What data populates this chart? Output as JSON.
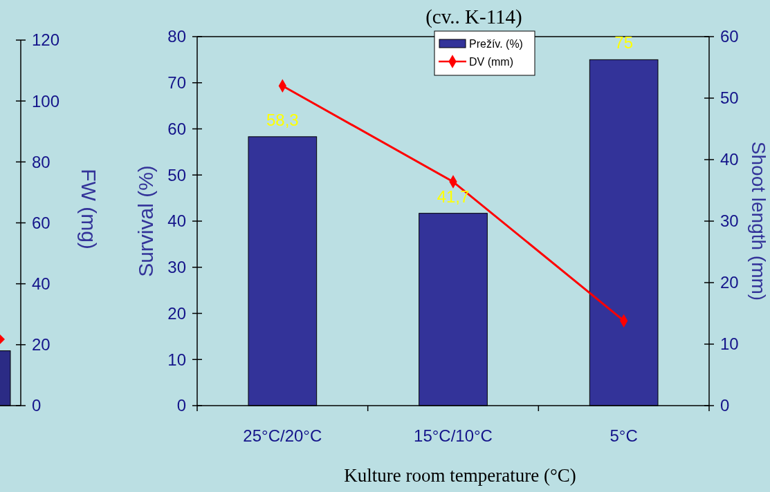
{
  "chart_data": [
    {
      "type": "bar",
      "ylabel": "FW (mg)",
      "categories": [
        null
      ],
      "ylim": [
        0,
        120
      ],
      "yticks": [
        0,
        20,
        40,
        60,
        80,
        100,
        120
      ],
      "grid": false,
      "series": [
        {
          "color": "#2b2b85",
          "values": [
            18
          ]
        }
      ]
    },
    {
      "type": "bar",
      "title": "(cv.. K-114)",
      "xlabel": "Kulture room temperature (°C)",
      "ylabel": "Survival (%)",
      "y2label": "Shoot length (mm)",
      "categories": [
        "25°C/20°C",
        "15°C/10°C",
        "5°C"
      ],
      "ylim": [
        0,
        80
      ],
      "yticks": [
        0,
        10,
        20,
        30,
        40,
        50,
        60,
        70,
        80
      ],
      "y2lim": [
        0,
        60
      ],
      "y2ticks": [
        0,
        10,
        20,
        30,
        40,
        50,
        60
      ],
      "legend": "top",
      "grid": false,
      "series": [
        {
          "name": "Prežív. (%)",
          "color": "#333399",
          "values": [
            58.3,
            41.7,
            75
          ],
          "value_labels": [
            "58,3",
            "41,7",
            "75"
          ]
        },
        {
          "name": "DV (mm)",
          "type": "line",
          "color": "#ff0000",
          "values": [
            52,
            36.4,
            13.8
          ],
          "axis": "y2",
          "marker": "diamond"
        }
      ]
    }
  ]
}
